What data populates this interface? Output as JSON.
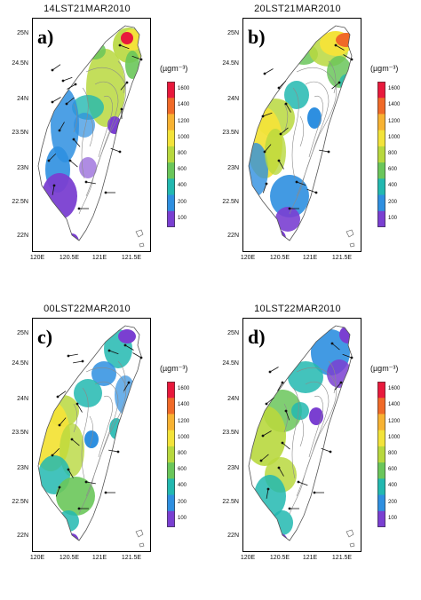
{
  "unit_label": "(µgm⁻³)",
  "colorbar": {
    "labels": [
      "1600",
      "1400",
      "1200",
      "1000",
      "800",
      "600",
      "400",
      "200",
      "100"
    ],
    "colors": [
      "#e8193c",
      "#f06a28",
      "#f7b232",
      "#f3e33a",
      "#b8d83e",
      "#6ac65a",
      "#22b8b0",
      "#2e8fe0",
      "#7a3fd1"
    ]
  },
  "axes": {
    "y_ticks": [
      "25N",
      "24.5N",
      "24N",
      "23.5N",
      "23N",
      "22.5N",
      "22N"
    ],
    "x_ticks": [
      "120E",
      "120.5E",
      "121E",
      "121.5E"
    ]
  },
  "panels": [
    {
      "id": "a",
      "label": "a)",
      "title": "14LST21MAR2010"
    },
    {
      "id": "b",
      "label": "b)",
      "title": "20LST21MAR2010"
    },
    {
      "id": "c",
      "label": "c)",
      "title": "00LST22MAR2010"
    },
    {
      "id": "d",
      "label": "d)",
      "title": "10LST22MAR2010"
    }
  ]
}
